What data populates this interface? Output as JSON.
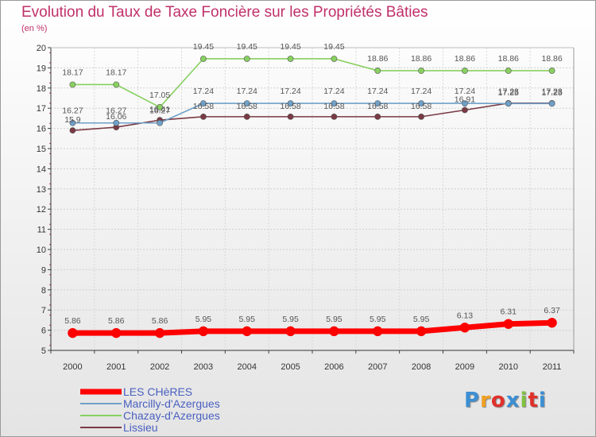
{
  "title": "Evolution du Taux de Taxe Foncière sur les Propriétés Bâties",
  "unit": "(en %)",
  "logo": {
    "text": "Proxiti",
    "colors": [
      "#3b8fd4",
      "#f0a020",
      "#e0302a",
      "#3b8fd4",
      "#80c040",
      "#e0302a",
      "#3b8fd4"
    ]
  },
  "chart_data": {
    "type": "line",
    "title": "Evolution du Taux de Taxe Foncière sur les Propriétés Bâties",
    "ylabel": "(en %)",
    "xlabel": "",
    "ylim": [
      5,
      20
    ],
    "yticks": [
      "5",
      "6",
      "7",
      "8",
      "9",
      "10",
      "11",
      "12",
      "13",
      "14",
      "15",
      "16",
      "17",
      "18",
      "19",
      "20"
    ],
    "categories": [
      "2000",
      "2001",
      "2002",
      "2003",
      "2004",
      "2005",
      "2006",
      "2007",
      "2008",
      "2009",
      "2010",
      "2011"
    ],
    "legend_position": "bottom-left",
    "series": [
      {
        "name": "LES CHèRES",
        "color": "#ff0000",
        "values": [
          5.86,
          5.86,
          5.86,
          5.95,
          5.95,
          5.95,
          5.95,
          5.95,
          5.95,
          6.13,
          6.31,
          6.37
        ],
        "labels": [
          "5.86",
          "5.86",
          "5.86",
          "5.95",
          "5.95",
          "5.95",
          "5.95",
          "5.95",
          "5.95",
          "6.13",
          "6.31",
          "6.37"
        ]
      },
      {
        "name": "Marcilly-d'Azergues",
        "color": "#6fa0c8",
        "values": [
          16.27,
          16.27,
          16.27,
          17.24,
          17.24,
          17.24,
          17.24,
          17.24,
          17.24,
          17.24,
          17.23,
          17.23
        ],
        "labels": [
          "16.27",
          "16.27",
          "16.27",
          "17.24",
          "17.24",
          "17.24",
          "17.24",
          "17.24",
          "17.24",
          "17.24",
          "17.23",
          "17.23"
        ]
      },
      {
        "name": "Chazay-d'Azergues",
        "color": "#88d060",
        "values": [
          18.17,
          18.17,
          17.05,
          19.45,
          19.45,
          19.45,
          19.45,
          18.86,
          18.86,
          18.86,
          18.86,
          18.86
        ],
        "labels": [
          "18.17",
          "18.17",
          "17.05",
          "19.45",
          "19.45",
          "19.45",
          "19.45",
          "18.86",
          "18.86",
          "18.86",
          "18.86",
          "18.86"
        ]
      },
      {
        "name": "Lissieu",
        "color": "#7a3a44",
        "values": [
          15.9,
          16.06,
          16.41,
          16.58,
          16.58,
          16.58,
          16.58,
          16.58,
          16.58,
          16.91,
          17.25,
          17.25
        ],
        "labels": [
          "15.9",
          "16.06",
          "16.41",
          "16.58",
          "16.58",
          "16.58",
          "16.58",
          "16.58",
          "16.58",
          "16.91",
          "17.25",
          "17.25"
        ]
      }
    ]
  }
}
